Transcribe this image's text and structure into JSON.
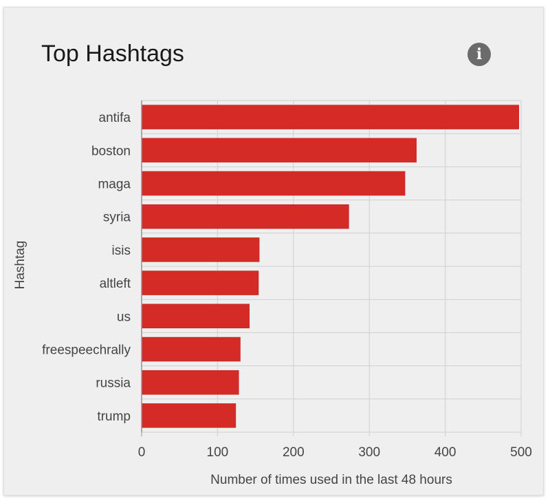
{
  "card": {
    "title": "Top Hashtags",
    "info_icon": "info-icon",
    "info_glyph": "i"
  },
  "chart_data": {
    "type": "bar",
    "orientation": "horizontal",
    "categories": [
      "antifa",
      "boston",
      "maga",
      "syria",
      "isis",
      "altleft",
      "us",
      "freespeechrally",
      "russia",
      "trump"
    ],
    "values": [
      497,
      362,
      347,
      273,
      155,
      154,
      142,
      130,
      128,
      124
    ],
    "xlabel": "Number of times used in the last 48 hours",
    "ylabel": "Hashtag",
    "xlim": [
      0,
      500
    ],
    "xticks": [
      0,
      100,
      200,
      300,
      400,
      500
    ],
    "bar_color": "#d52b27",
    "grid": true
  }
}
